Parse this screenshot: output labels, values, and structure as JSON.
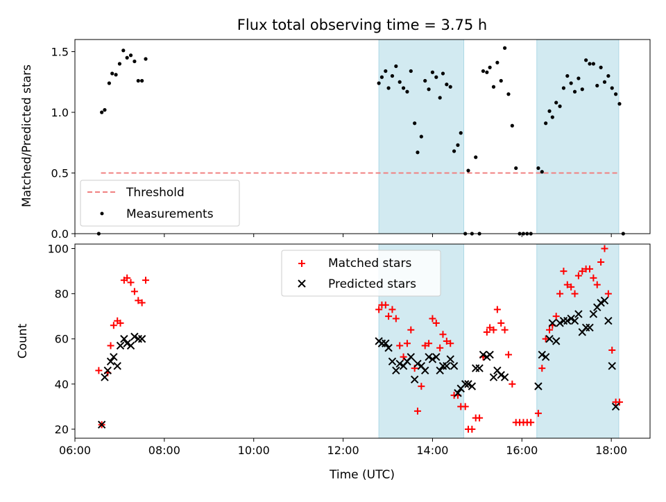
{
  "title": "Flux total observing time = 3.75 h",
  "colors": {
    "threshold": "#f08080",
    "matched": "#ff0000",
    "predicted": "#000000",
    "shade": "#add8e6"
  },
  "chart_data": [
    {
      "type": "scatter",
      "ylabel": "Matched/Predicted stars",
      "xlabel": "",
      "xlim": [
        "06:00",
        "18:52"
      ],
      "ylim": [
        0,
        1.6
      ],
      "yticks": [
        "0.0",
        "0.5",
        "1.0",
        "1.5"
      ],
      "grid": false,
      "legend_position": "lower-left",
      "shaded_regions": [
        [
          "12:48",
          "14:42"
        ],
        [
          "16:20",
          "18:10"
        ]
      ],
      "threshold": {
        "name": "Threshold",
        "value": 0.5,
        "x": [
          "06:35",
          "18:10"
        ]
      },
      "series": [
        {
          "name": "Measurements",
          "points": [
            [
              "06:32",
              0.0
            ],
            [
              "06:36",
              1.0
            ],
            [
              "06:40",
              1.02
            ],
            [
              "06:46",
              1.24
            ],
            [
              "06:50",
              1.32
            ],
            [
              "06:55",
              1.31
            ],
            [
              "07:00",
              1.4
            ],
            [
              "07:05",
              1.51
            ],
            [
              "07:10",
              1.45
            ],
            [
              "07:15",
              1.47
            ],
            [
              "07:20",
              1.42
            ],
            [
              "07:25",
              1.26
            ],
            [
              "07:30",
              1.26
            ],
            [
              "07:35",
              1.44
            ],
            [
              "12:48",
              1.24
            ],
            [
              "12:52",
              1.29
            ],
            [
              "12:57",
              1.34
            ],
            [
              "13:01",
              1.2
            ],
            [
              "13:06",
              1.3
            ],
            [
              "13:11",
              1.38
            ],
            [
              "13:16",
              1.25
            ],
            [
              "13:21",
              1.2
            ],
            [
              "13:26",
              1.17
            ],
            [
              "13:31",
              1.34
            ],
            [
              "13:36",
              0.91
            ],
            [
              "13:40",
              0.67
            ],
            [
              "13:45",
              0.8
            ],
            [
              "13:50",
              1.26
            ],
            [
              "13:55",
              1.19
            ],
            [
              "14:00",
              1.33
            ],
            [
              "14:05",
              1.29
            ],
            [
              "14:10",
              1.12
            ],
            [
              "14:14",
              1.32
            ],
            [
              "14:19",
              1.23
            ],
            [
              "14:24",
              1.21
            ],
            [
              "14:29",
              0.68
            ],
            [
              "14:34",
              0.73
            ],
            [
              "14:38",
              0.83
            ],
            [
              "14:44",
              0.0
            ],
            [
              "14:48",
              0.52
            ],
            [
              "14:53",
              0.0
            ],
            [
              "14:58",
              0.63
            ],
            [
              "15:03",
              0.0
            ],
            [
              "15:08",
              1.34
            ],
            [
              "15:13",
              1.33
            ],
            [
              "15:17",
              1.37
            ],
            [
              "15:22",
              1.21
            ],
            [
              "15:27",
              1.41
            ],
            [
              "15:32",
              1.26
            ],
            [
              "15:37",
              1.53
            ],
            [
              "15:42",
              1.15
            ],
            [
              "15:47",
              0.89
            ],
            [
              "15:52",
              0.54
            ],
            [
              "15:57",
              0.0
            ],
            [
              "16:02",
              0.0
            ],
            [
              "16:07",
              0.0
            ],
            [
              "16:12",
              0.0
            ],
            [
              "16:22",
              0.54
            ],
            [
              "16:27",
              0.51
            ],
            [
              "16:32",
              0.91
            ],
            [
              "16:37",
              1.01
            ],
            [
              "16:41",
              0.96
            ],
            [
              "16:46",
              1.08
            ],
            [
              "16:51",
              1.05
            ],
            [
              "16:56",
              1.2
            ],
            [
              "17:01",
              1.3
            ],
            [
              "17:06",
              1.24
            ],
            [
              "17:11",
              1.17
            ],
            [
              "17:16",
              1.28
            ],
            [
              "17:21",
              1.19
            ],
            [
              "17:26",
              1.43
            ],
            [
              "17:31",
              1.4
            ],
            [
              "17:36",
              1.4
            ],
            [
              "17:41",
              1.22
            ],
            [
              "17:46",
              1.37
            ],
            [
              "17:51",
              1.25
            ],
            [
              "17:56",
              1.3
            ],
            [
              "18:01",
              1.2
            ],
            [
              "18:06",
              1.15
            ],
            [
              "18:11",
              1.07
            ],
            [
              "18:16",
              0.0
            ]
          ]
        }
      ]
    },
    {
      "type": "scatter",
      "ylabel": "Count",
      "xlabel": "Time (UTC)",
      "xlim": [
        "06:00",
        "18:52"
      ],
      "ylim": [
        16,
        102
      ],
      "yticks": [
        "20",
        "40",
        "60",
        "80",
        "100"
      ],
      "xticks": [
        "06:00",
        "08:00",
        "10:00",
        "12:00",
        "14:00",
        "16:00",
        "18:00"
      ],
      "grid": false,
      "legend_position": "top-center",
      "shaded_regions": [
        [
          "12:48",
          "14:42"
        ],
        [
          "16:20",
          "18:10"
        ]
      ],
      "series": [
        {
          "name": "Matched stars",
          "marker": "plus",
          "points": [
            [
              "06:32",
              46
            ],
            [
              "06:36",
              22
            ],
            [
              "06:44",
              45
            ],
            [
              "06:48",
              57
            ],
            [
              "06:52",
              66
            ],
            [
              "06:57",
              68
            ],
            [
              "07:01",
              67
            ],
            [
              "07:06",
              86
            ],
            [
              "07:10",
              87
            ],
            [
              "07:15",
              85
            ],
            [
              "07:20",
              81
            ],
            [
              "07:25",
              77
            ],
            [
              "07:30",
              76
            ],
            [
              "07:35",
              86
            ],
            [
              "12:48",
              73
            ],
            [
              "12:52",
              75
            ],
            [
              "12:57",
              75
            ],
            [
              "13:01",
              70
            ],
            [
              "13:06",
              73
            ],
            [
              "13:11",
              69
            ],
            [
              "13:16",
              57
            ],
            [
              "13:21",
              52
            ],
            [
              "13:26",
              58
            ],
            [
              "13:31",
              64
            ],
            [
              "13:36",
              47
            ],
            [
              "13:40",
              28
            ],
            [
              "13:45",
              39
            ],
            [
              "13:50",
              57
            ],
            [
              "13:55",
              58
            ],
            [
              "14:00",
              69
            ],
            [
              "14:05",
              67
            ],
            [
              "14:10",
              56
            ],
            [
              "14:14",
              62
            ],
            [
              "14:19",
              59
            ],
            [
              "14:24",
              58
            ],
            [
              "14:29",
              35
            ],
            [
              "14:34",
              35
            ],
            [
              "14:38",
              30
            ],
            [
              "14:44",
              30
            ],
            [
              "14:48",
              20
            ],
            [
              "14:53",
              20
            ],
            [
              "14:58",
              25
            ],
            [
              "15:03",
              25
            ],
            [
              "15:08",
              52
            ],
            [
              "15:13",
              63
            ],
            [
              "15:17",
              65
            ],
            [
              "15:22",
              64
            ],
            [
              "15:27",
              73
            ],
            [
              "15:32",
              67
            ],
            [
              "15:37",
              64
            ],
            [
              "15:42",
              53
            ],
            [
              "15:47",
              40
            ],
            [
              "15:52",
              23
            ],
            [
              "15:57",
              23
            ],
            [
              "16:02",
              23
            ],
            [
              "16:07",
              23
            ],
            [
              "16:12",
              23
            ],
            [
              "16:22",
              27
            ],
            [
              "16:27",
              47
            ],
            [
              "16:32",
              60
            ],
            [
              "16:37",
              64
            ],
            [
              "16:41",
              66
            ],
            [
              "16:46",
              70
            ],
            [
              "16:51",
              80
            ],
            [
              "16:56",
              90
            ],
            [
              "17:01",
              84
            ],
            [
              "17:06",
              83
            ],
            [
              "17:11",
              80
            ],
            [
              "17:16",
              88
            ],
            [
              "17:21",
              90
            ],
            [
              "17:26",
              91
            ],
            [
              "17:31",
              91
            ],
            [
              "17:36",
              87
            ],
            [
              "17:41",
              84
            ],
            [
              "17:46",
              94
            ],
            [
              "17:51",
              100
            ],
            [
              "17:56",
              80
            ],
            [
              "18:01",
              55
            ],
            [
              "18:06",
              32
            ],
            [
              "18:11",
              32
            ]
          ]
        },
        {
          "name": "Predicted stars",
          "marker": "x",
          "points": [
            [
              "06:36",
              22
            ],
            [
              "06:40",
              43
            ],
            [
              "06:44",
              46
            ],
            [
              "06:48",
              50
            ],
            [
              "06:52",
              52
            ],
            [
              "06:57",
              48
            ],
            [
              "07:01",
              57
            ],
            [
              "07:06",
              60
            ],
            [
              "07:10",
              58
            ],
            [
              "07:15",
              57
            ],
            [
              "07:20",
              61
            ],
            [
              "07:25",
              60
            ],
            [
              "07:30",
              60
            ],
            [
              "12:48",
              59
            ],
            [
              "12:52",
              58
            ],
            [
              "12:57",
              58
            ],
            [
              "13:01",
              56
            ],
            [
              "13:06",
              50
            ],
            [
              "13:11",
              46
            ],
            [
              "13:16",
              49
            ],
            [
              "13:21",
              48
            ],
            [
              "13:26",
              50
            ],
            [
              "13:31",
              52
            ],
            [
              "13:36",
              42
            ],
            [
              "13:40",
              49
            ],
            [
              "13:45",
              48
            ],
            [
              "13:50",
              46
            ],
            [
              "13:55",
              52
            ],
            [
              "14:00",
              51
            ],
            [
              "14:05",
              52
            ],
            [
              "14:10",
              46
            ],
            [
              "14:14",
              48
            ],
            [
              "14:19",
              48
            ],
            [
              "14:24",
              51
            ],
            [
              "14:29",
              48
            ],
            [
              "14:34",
              36
            ],
            [
              "14:38",
              38
            ],
            [
              "14:44",
              40
            ],
            [
              "14:48",
              40
            ],
            [
              "14:53",
              39
            ],
            [
              "14:58",
              47
            ],
            [
              "15:03",
              47
            ],
            [
              "15:08",
              53
            ],
            [
              "15:13",
              52
            ],
            [
              "15:17",
              53
            ],
            [
              "15:22",
              43
            ],
            [
              "15:27",
              46
            ],
            [
              "15:32",
              44
            ],
            [
              "15:37",
              43
            ],
            [
              "16:22",
              39
            ],
            [
              "16:27",
              53
            ],
            [
              "16:32",
              52
            ],
            [
              "16:37",
              60
            ],
            [
              "16:41",
              67
            ],
            [
              "16:46",
              59
            ],
            [
              "16:51",
              67
            ],
            [
              "16:56",
              68
            ],
            [
              "17:01",
              68
            ],
            [
              "17:06",
              69
            ],
            [
              "17:11",
              68
            ],
            [
              "17:16",
              71
            ],
            [
              "17:21",
              63
            ],
            [
              "17:26",
              65
            ],
            [
              "17:31",
              65
            ],
            [
              "17:36",
              71
            ],
            [
              "17:41",
              74
            ],
            [
              "17:46",
              76
            ],
            [
              "17:51",
              77
            ],
            [
              "17:56",
              68
            ],
            [
              "18:01",
              48
            ],
            [
              "18:06",
              30
            ]
          ]
        }
      ]
    }
  ]
}
